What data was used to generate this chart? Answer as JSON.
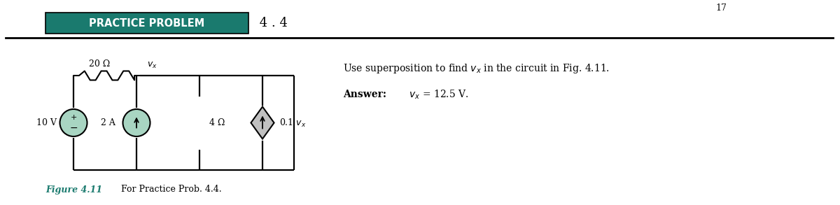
{
  "title_box_text": "PRACTICE PROBLEM",
  "title_number": " 4 . 4",
  "title_box_color": "#1a7a6e",
  "title_text_color": "#ffffff",
  "title_border_color": "#000000",
  "header_line_color": "#000000",
  "page_number": "17",
  "background_color": "#ffffff",
  "circuit_line_color": "#000000",
  "figure_label": "Figure 4.11",
  "figure_caption": "    For Practice Prob. 4.4.",
  "figure_label_color": "#1a7a6e",
  "problem_text": "Use superposition to find $v_x$ in the circuit in Fig. 4.11.",
  "answer_label": "Answer:",
  "answer_value": " $v_x$ = 12.5 V.",
  "resistor_top_label": "20 Ω",
  "vx_label": "$v_x$",
  "voltage_src_label": "10 V",
  "current_src_label": "2 A",
  "resistor_mid_label": "4 Ω",
  "dep_current_label": "0.1 $v_x$"
}
